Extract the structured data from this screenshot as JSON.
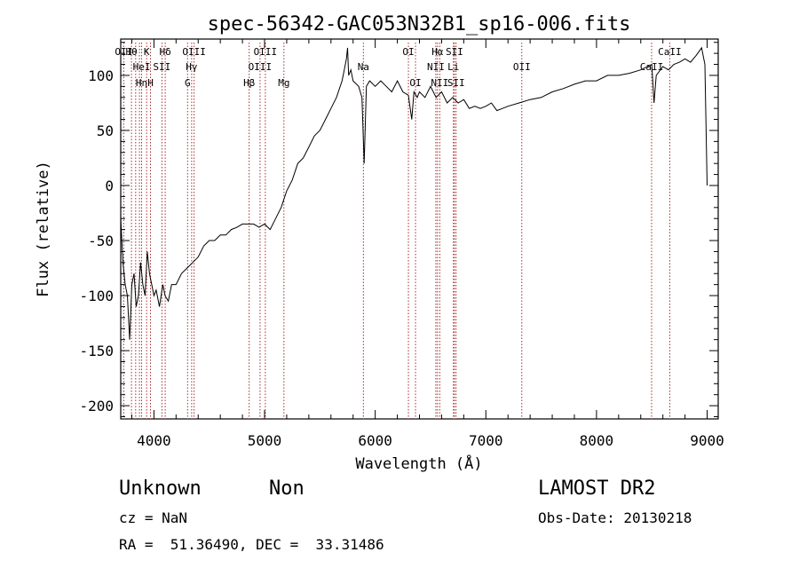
{
  "chart_data": {
    "type": "line",
    "title": "spec-56342-GAC053N32B1_sp16-006.fits",
    "xlabel": "Wavelength (Å)",
    "ylabel": "Flux (relative)",
    "xlim": [
      3700,
      9100
    ],
    "ylim": [
      -212,
      133
    ],
    "x_ticks": [
      4000,
      5000,
      6000,
      7000,
      8000,
      9000
    ],
    "y_ticks": [
      -200,
      -150,
      -100,
      -50,
      0,
      50,
      100
    ],
    "grid": false,
    "series": [
      {
        "x": [
          3700,
          3720,
          3740,
          3760,
          3780,
          3800,
          3820,
          3840,
          3860,
          3880,
          3900,
          3920,
          3940,
          3960,
          3980,
          4000,
          4020,
          4050,
          4080,
          4100,
          4130,
          4160,
          4200,
          4250,
          4300,
          4350,
          4400,
          4450,
          4500,
          4550,
          4600,
          4650,
          4700,
          4750,
          4800,
          4850,
          4900,
          4950,
          5000,
          5050,
          5100,
          5150,
          5200,
          5250,
          5300,
          5350,
          5400,
          5450,
          5500,
          5550,
          5600,
          5650,
          5700,
          5720,
          5740,
          5750,
          5760,
          5780,
          5800,
          5850,
          5880,
          5900,
          5920,
          5950,
          6000,
          6050,
          6100,
          6150,
          6200,
          6250,
          6300,
          6330,
          6350,
          6380,
          6400,
          6450,
          6500,
          6550,
          6600,
          6650,
          6700,
          6750,
          6800,
          6850,
          6900,
          6950,
          7000,
          7050,
          7100,
          7150,
          7200,
          7300,
          7400,
          7500,
          7600,
          7700,
          7800,
          7900,
          8000,
          8100,
          8200,
          8300,
          8400,
          8500,
          8520,
          8540,
          8600,
          8650,
          8700,
          8750,
          8800,
          8850,
          8900,
          8950,
          8980,
          9000
        ],
        "y": [
          -30,
          -70,
          -90,
          -100,
          -140,
          -90,
          -80,
          -110,
          -100,
          -70,
          -90,
          -100,
          -60,
          -80,
          -90,
          -100,
          -95,
          -110,
          -90,
          -100,
          -105,
          -90,
          -90,
          -80,
          -75,
          -70,
          -65,
          -55,
          -50,
          -50,
          -45,
          -45,
          -40,
          -38,
          -35,
          -35,
          -35,
          -38,
          -35,
          -40,
          -30,
          -20,
          -5,
          5,
          20,
          25,
          35,
          45,
          50,
          60,
          70,
          80,
          95,
          105,
          115,
          125,
          100,
          105,
          95,
          90,
          80,
          20,
          90,
          95,
          90,
          95,
          90,
          85,
          95,
          85,
          82,
          60,
          85,
          80,
          85,
          80,
          90,
          80,
          85,
          75,
          80,
          75,
          78,
          70,
          72,
          70,
          72,
          75,
          68,
          70,
          72,
          75,
          78,
          80,
          85,
          88,
          92,
          95,
          95,
          100,
          100,
          102,
          105,
          110,
          75,
          100,
          108,
          105,
          110,
          112,
          115,
          112,
          118,
          125,
          110,
          0
        ]
      }
    ],
    "lines": [
      {
        "x": 3727,
        "top": [
          "OII"
        ],
        "second": [],
        "low": []
      },
      {
        "x": 3797,
        "top": [
          "Hθ"
        ],
        "second": [],
        "low": []
      },
      {
        "x": 3835,
        "top": [],
        "second": [],
        "low": []
      },
      {
        "x": 3869,
        "top": [],
        "second": [],
        "low": []
      },
      {
        "x": 3889,
        "top": [],
        "second": [
          "HeI"
        ],
        "low": [
          "Hη"
        ]
      },
      {
        "x": 3934,
        "top": [
          "K"
        ],
        "second": [],
        "low": []
      },
      {
        "x": 3969,
        "top": [],
        "second": [],
        "low": [
          "H"
        ]
      },
      {
        "x": 4072,
        "top": [],
        "second": [
          "SII"
        ],
        "low": []
      },
      {
        "x": 4102,
        "top": [
          "Hδ"
        ],
        "second": [],
        "low": []
      },
      {
        "x": 4304,
        "top": [],
        "second": [],
        "low": [
          "G"
        ]
      },
      {
        "x": 4341,
        "top": [],
        "second": [
          "Hγ"
        ],
        "low": []
      },
      {
        "x": 4363,
        "top": [
          "OIII"
        ],
        "second": [],
        "low": []
      },
      {
        "x": 4861,
        "top": [],
        "second": [],
        "low": [
          "Hβ"
        ]
      },
      {
        "x": 4959,
        "top": [],
        "second": [
          "OIII"
        ],
        "low": []
      },
      {
        "x": 5007,
        "top": [
          "OIII"
        ],
        "second": [],
        "low": []
      },
      {
        "x": 5175,
        "top": [],
        "second": [],
        "low": [
          "Mg"
        ]
      },
      {
        "x": 5893,
        "top": [],
        "second": [
          "Na"
        ],
        "low": []
      },
      {
        "x": 6300,
        "top": [
          "OI"
        ],
        "second": [],
        "low": []
      },
      {
        "x": 6364,
        "top": [],
        "second": [],
        "low": [
          "OI"
        ]
      },
      {
        "x": 6548,
        "top": [],
        "second": [
          "NII"
        ],
        "low": []
      },
      {
        "x": 6563,
        "top": [
          "Hα"
        ],
        "second": [],
        "low": []
      },
      {
        "x": 6583,
        "top": [],
        "second": [],
        "low": [
          "NII"
        ]
      },
      {
        "x": 6707,
        "top": [],
        "second": [
          "Li"
        ],
        "low": []
      },
      {
        "x": 6716,
        "top": [
          "SII"
        ],
        "second": [],
        "low": []
      },
      {
        "x": 6731,
        "top": [],
        "second": [],
        "low": [
          "SII"
        ]
      },
      {
        "x": 7325,
        "top": [],
        "second": [
          "OII"
        ],
        "low": []
      },
      {
        "x": 8498,
        "top": [],
        "second": [
          "CaII"
        ],
        "low": []
      },
      {
        "x": 8662,
        "top": [
          "CaII"
        ],
        "second": [],
        "low": []
      }
    ]
  },
  "info": {
    "class": "Unknown",
    "subclass": "Non",
    "survey": "LAMOST DR2",
    "cz": "cz = NaN",
    "obs_date": "Obs-Date: 20130218",
    "radec": "RA =  51.36490, DEC =  33.31486"
  }
}
